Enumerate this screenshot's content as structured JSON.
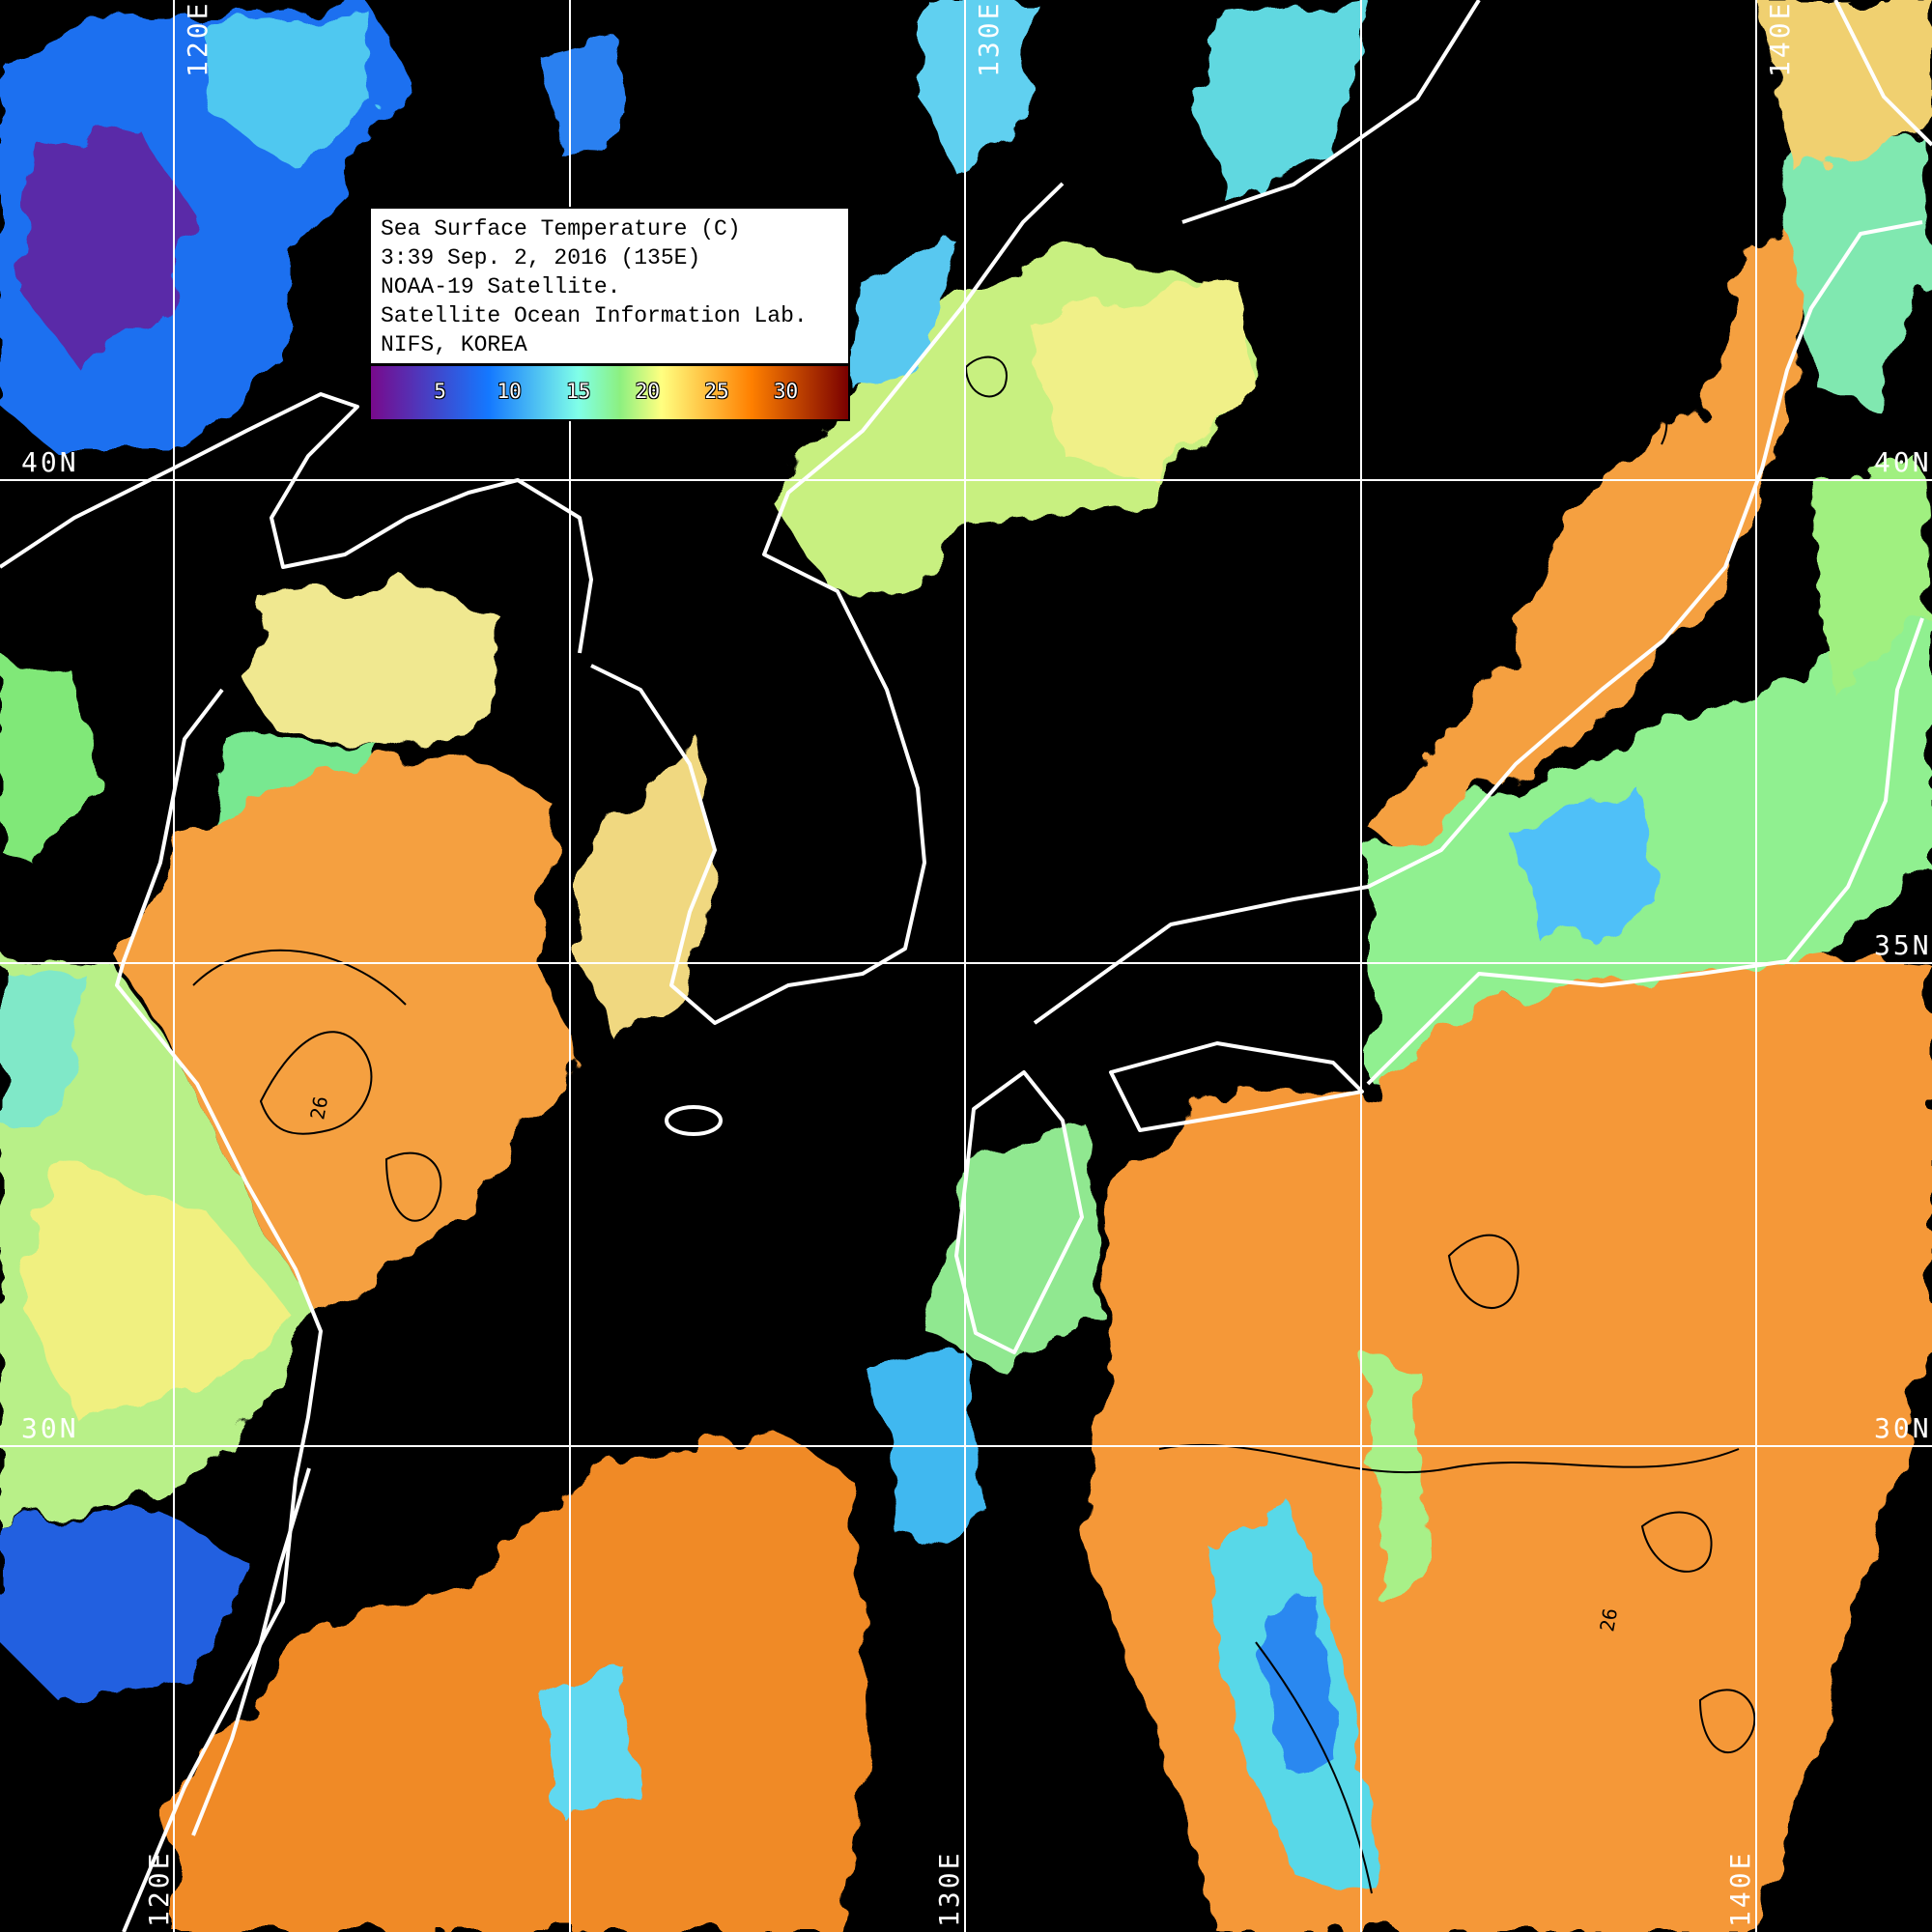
{
  "legend": {
    "lines": [
      "Sea Surface Temperature (C)",
      "3:39 Sep. 2, 2016 (135E)",
      "NOAA-19 Satellite.",
      "Satellite Ocean Information Lab.",
      "NIFS, KOREA"
    ],
    "colorbar": {
      "range": [
        0,
        34.5
      ],
      "ticks": [
        "5",
        "10",
        "15",
        "20",
        "25",
        "30"
      ],
      "tick_values": [
        5,
        10,
        15,
        20,
        25,
        30
      ],
      "stops": [
        {
          "value": 0,
          "color": "#780a8c"
        },
        {
          "value": 8.5,
          "color": "#1478ff"
        },
        {
          "value": 15,
          "color": "#80ffe8"
        },
        {
          "value": 18,
          "color": "#8cf080"
        },
        {
          "value": 21,
          "color": "#ffff80"
        },
        {
          "value": 27.5,
          "color": "#ff8000"
        },
        {
          "value": 34.5,
          "color": "#7a0000"
        }
      ]
    }
  },
  "grid": {
    "lon_labels_top": [
      "120E",
      "130E",
      "140E"
    ],
    "lon_labels_bottom": [
      "120E",
      "130E",
      "140E"
    ],
    "lat_labels_left": [
      "40N",
      "30N"
    ],
    "lat_labels_right": [
      "40N",
      "35N",
      "30N"
    ],
    "line_color": "#ffffff"
  },
  "map": {
    "contour_label": "26",
    "background_color": "#000000",
    "coastline_color": "#ffffff"
  }
}
